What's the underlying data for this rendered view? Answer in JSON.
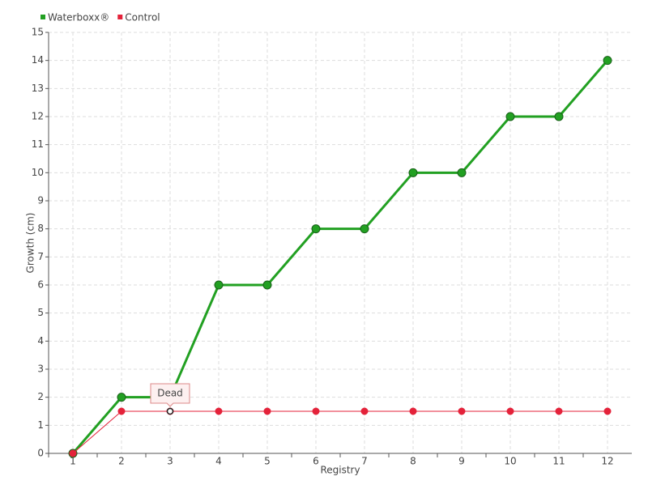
{
  "chart_data": {
    "type": "line",
    "categories": [
      "1",
      "2",
      "3",
      "4",
      "5",
      "6",
      "7",
      "8",
      "9",
      "10",
      "11",
      "12"
    ],
    "series": [
      {
        "name": "Waterboxx®",
        "color": "#22a022",
        "values": [
          0,
          2,
          2,
          6,
          6,
          8,
          8,
          10,
          10,
          12,
          12,
          14
        ]
      },
      {
        "name": "Control",
        "color": "#e4223a",
        "values": [
          0,
          1.5,
          1.5,
          1.5,
          1.5,
          1.5,
          1.5,
          1.5,
          1.5,
          1.5,
          1.5,
          1.5
        ]
      }
    ],
    "xlabel": "Registry",
    "ylabel": "Growth (cm)",
    "ylim": [
      0,
      15
    ],
    "yticks": [
      0,
      1,
      2,
      3,
      4,
      5,
      6,
      7,
      8,
      9,
      10,
      11,
      12,
      13,
      14,
      15
    ],
    "grid": true,
    "legend": "top-left",
    "annotations": [
      {
        "text": "Dead",
        "series": "Control",
        "category": "3"
      }
    ]
  }
}
